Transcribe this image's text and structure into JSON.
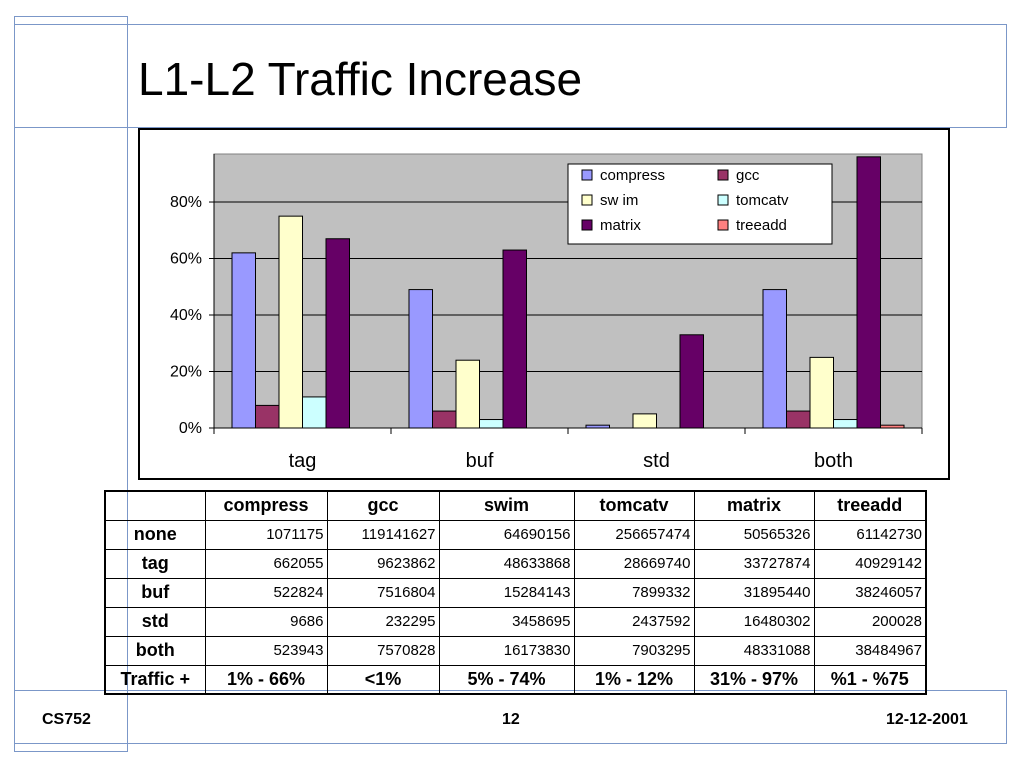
{
  "slide": {
    "title": "L1-L2 Traffic Increase",
    "footer_left": "CS752",
    "footer_center": "12",
    "footer_right": "12-12-2001"
  },
  "chart_data": {
    "type": "bar",
    "title": "",
    "xlabel": "",
    "ylabel": "",
    "categories": [
      "tag",
      "buf",
      "std",
      "both"
    ],
    "ylim": [
      0,
      0.97
    ],
    "yticks": [
      "0%",
      "20%",
      "40%",
      "60%",
      "80%"
    ],
    "ytick_values": [
      0,
      0.2,
      0.4,
      0.6,
      0.8
    ],
    "grid": true,
    "legend_position": "top-right",
    "series": [
      {
        "name": "compress",
        "color": "#9999ff",
        "values": [
          0.62,
          0.49,
          0.01,
          0.49
        ]
      },
      {
        "name": "gcc",
        "color": "#993366",
        "values": [
          0.08,
          0.06,
          0.0,
          0.06
        ]
      },
      {
        "name": "sw im",
        "color": "#ffffcc",
        "values": [
          0.75,
          0.24,
          0.05,
          0.25
        ]
      },
      {
        "name": "tomcatv",
        "color": "#ccffff",
        "values": [
          0.11,
          0.03,
          0.0,
          0.03
        ]
      },
      {
        "name": "matrix",
        "color": "#660066",
        "values": [
          0.67,
          0.63,
          0.33,
          0.96
        ]
      },
      {
        "name": "treeadd",
        "color": "#ff8080",
        "values": [
          0.0,
          0.0,
          0.0,
          0.01
        ]
      }
    ]
  },
  "table": {
    "headers": [
      "compress",
      "gcc",
      "swim",
      "tomcatv",
      "matrix",
      "treeadd"
    ],
    "rows": [
      {
        "label": "none",
        "values": [
          "1071175",
          "119141627",
          "64690156",
          "256657474",
          "50565326",
          "61142730"
        ]
      },
      {
        "label": "tag",
        "values": [
          "662055",
          "9623862",
          "48633868",
          "28669740",
          "33727874",
          "40929142"
        ]
      },
      {
        "label": "buf",
        "values": [
          "522824",
          "7516804",
          "15284143",
          "7899332",
          "31895440",
          "38246057"
        ]
      },
      {
        "label": "std",
        "values": [
          "9686",
          "232295",
          "3458695",
          "2437592",
          "16480302",
          "200028"
        ]
      },
      {
        "label": "both",
        "values": [
          "523943",
          "7570828",
          "16173830",
          "7903295",
          "48331088",
          "38484967"
        ]
      }
    ],
    "traffic_label": "Traffic +",
    "traffic_values": [
      "1% - 66%",
      "<1%",
      "5% - 74%",
      "1% - 12%",
      "31% - 97%",
      "%1 - %75"
    ]
  }
}
